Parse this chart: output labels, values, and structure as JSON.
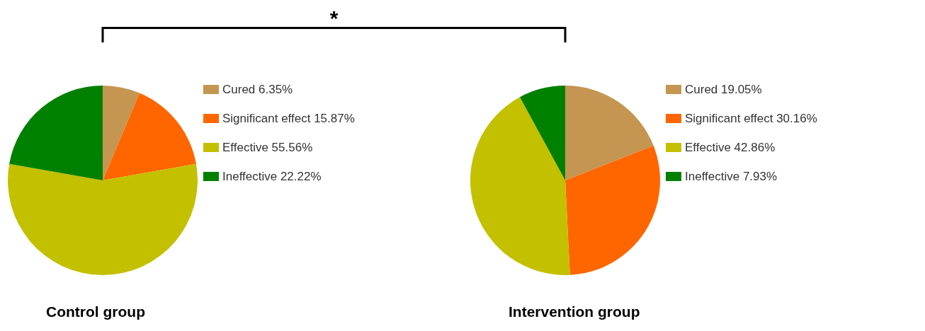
{
  "chart_data": [
    {
      "type": "pie",
      "title": "Control group",
      "categories": [
        "Cured 6.35%",
        "Significant effect 15.87%",
        "Effective 55.56%",
        "Ineffective 22.22%"
      ],
      "values": [
        6.35,
        15.87,
        55.56,
        22.22
      ],
      "colors": [
        "#c49651",
        "#ff6600",
        "#c3c000",
        "#008000"
      ],
      "legend": "right",
      "annotations": [
        "*"
      ]
    },
    {
      "type": "pie",
      "title": "Intervention group",
      "categories": [
        "Cured 19.05%",
        "Significant effect 30.16%",
        "Effective 42.86%",
        "Ineffective 7.93%"
      ],
      "values": [
        19.05,
        30.16,
        42.86,
        7.93
      ],
      "colors": [
        "#c49651",
        "#ff6600",
        "#c3c000",
        "#008000"
      ],
      "legend": "right"
    }
  ]
}
